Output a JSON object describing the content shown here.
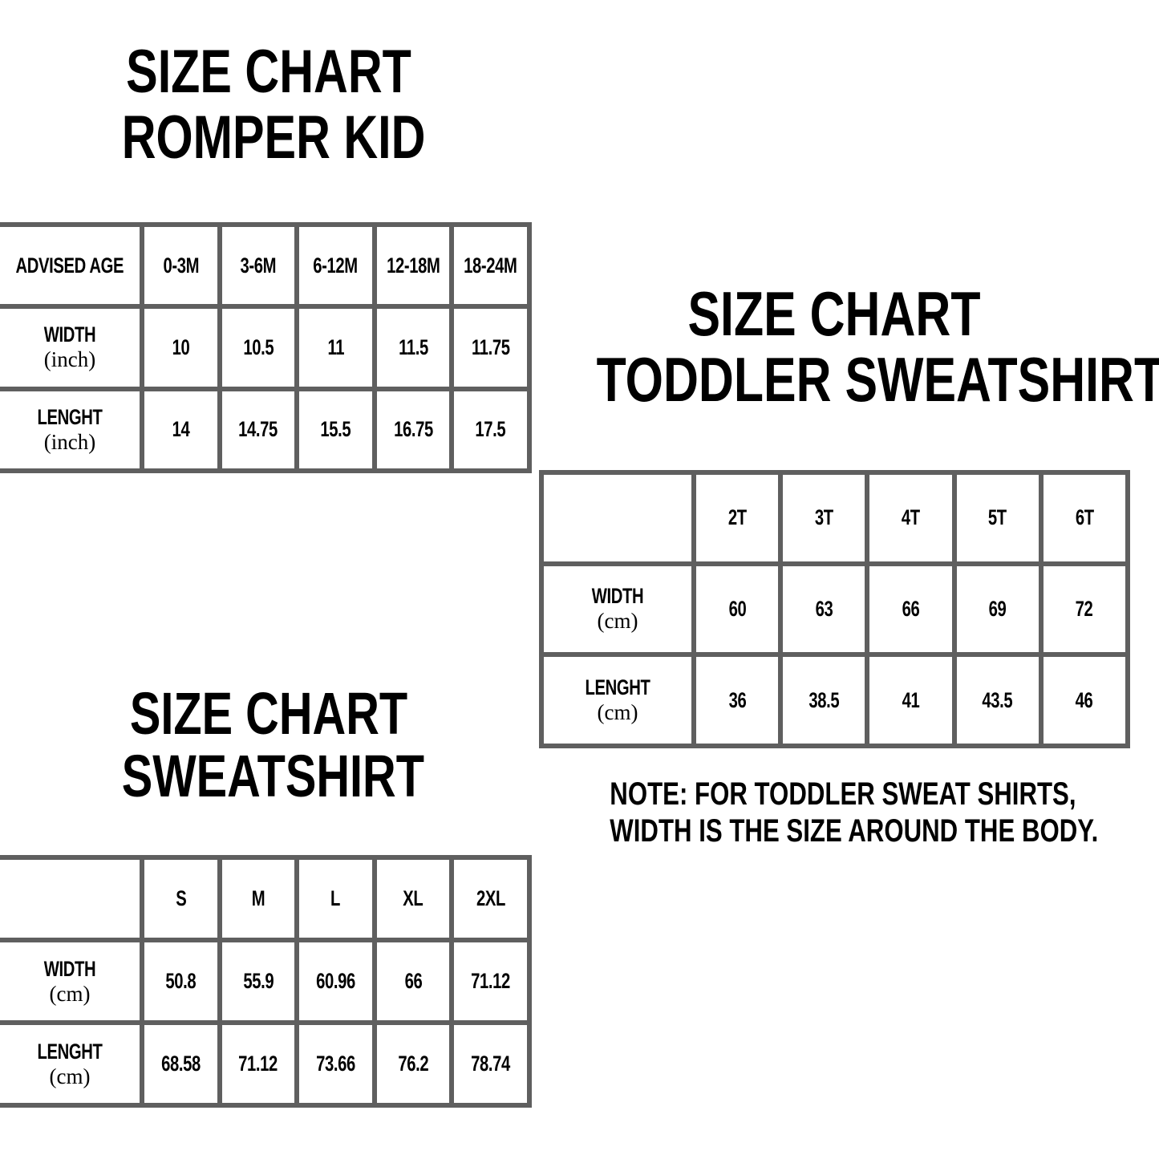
{
  "romper": {
    "title_line1": "SIZE CHART",
    "title_line2": "ROMPER KID",
    "header_label": "ADVISED AGE",
    "sizes": [
      "0-3M",
      "3-6M",
      "6-12M",
      "12-18M",
      "18-24M"
    ],
    "rows": [
      {
        "label": "WIDTH",
        "unit": "(inch)",
        "values": [
          "10",
          "10.5",
          "11",
          "11.5",
          "11.75"
        ]
      },
      {
        "label": "LENGHT",
        "unit": "(inch)",
        "values": [
          "14",
          "14.75",
          "15.5",
          "16.75",
          "17.5"
        ]
      }
    ]
  },
  "toddler": {
    "title_line1": "SIZE CHART",
    "title_line2": "TODDLER SWEATSHIRT",
    "header_label": "",
    "sizes": [
      "2T",
      "3T",
      "4T",
      "5T",
      "6T"
    ],
    "rows": [
      {
        "label": "WIDTH",
        "unit": "(cm)",
        "values": [
          "60",
          "63",
          "66",
          "69",
          "72"
        ]
      },
      {
        "label": "LENGHT",
        "unit": "(cm)",
        "values": [
          "36",
          "38.5",
          "41",
          "43.5",
          "46"
        ]
      }
    ],
    "note_line1": "NOTE: FOR TODDLER SWEAT SHIRTS,",
    "note_line2": "WIDTH IS THE SIZE AROUND THE BODY."
  },
  "sweatshirt": {
    "title_line1": "SIZE CHART",
    "title_line2": "SWEATSHIRT",
    "header_label": "",
    "sizes": [
      "S",
      "M",
      "L",
      "XL",
      "2XL"
    ],
    "rows": [
      {
        "label": "WIDTH",
        "unit": "(cm)",
        "values": [
          "50.8",
          "55.9",
          "60.96",
          "66",
          "71.12"
        ]
      },
      {
        "label": "LENGHT",
        "unit": "(cm)",
        "values": [
          "68.58",
          "71.12",
          "73.66",
          "76.2",
          "78.74"
        ]
      }
    ]
  },
  "colors": {
    "border": "#5f5f5f",
    "text": "#000000",
    "background": "#ffffff"
  }
}
